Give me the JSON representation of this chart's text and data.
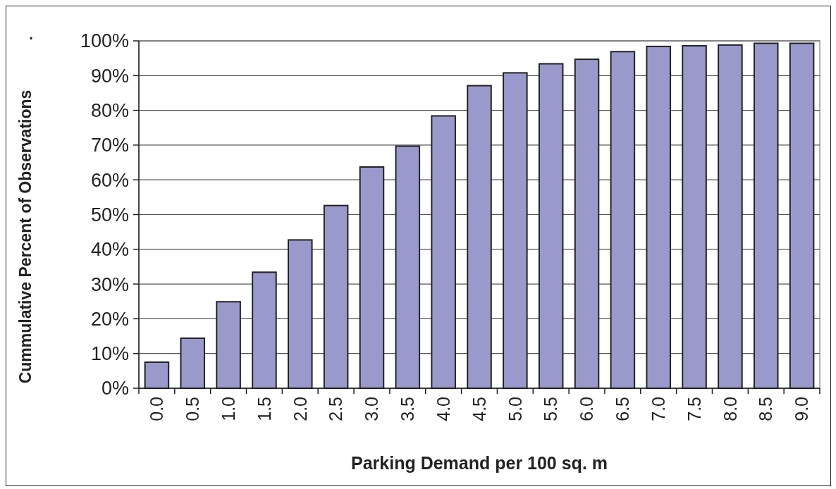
{
  "chart_data": {
    "type": "bar",
    "xlabel": "Parking Demand per 100 sq. m",
    "ylabel": "Cummulative Percent of Observations",
    "annotations": [
      "."
    ],
    "categories": [
      "0.0",
      "0.5",
      "1.0",
      "1.5",
      "2.0",
      "2.5",
      "3.0",
      "3.5",
      "4.0",
      "4.5",
      "5.0",
      "5.5",
      "6.0",
      "6.5",
      "7.0",
      "7.5",
      "8.0",
      "8.5",
      "9.0"
    ],
    "values": [
      7.5,
      14.4,
      24.9,
      33.4,
      42.7,
      52.6,
      63.7,
      69.7,
      78.4,
      87.1,
      90.8,
      93.4,
      94.7,
      96.9,
      98.4,
      98.6,
      98.8,
      99.3,
      99.3
    ],
    "color": "#9999cc",
    "ylim": [
      0,
      100
    ],
    "yticks": [
      {
        "value": 0,
        "label": "0%"
      },
      {
        "value": 10,
        "label": "10%"
      },
      {
        "value": 20,
        "label": "20%"
      },
      {
        "value": 30,
        "label": "30%"
      },
      {
        "value": 40,
        "label": "40%"
      },
      {
        "value": 50,
        "label": "50%"
      },
      {
        "value": 60,
        "label": "60%"
      },
      {
        "value": 70,
        "label": "70%"
      },
      {
        "value": 80,
        "label": "80%"
      },
      {
        "value": 90,
        "label": "90%"
      },
      {
        "value": 100,
        "label": "100%"
      }
    ],
    "grid": "y"
  }
}
